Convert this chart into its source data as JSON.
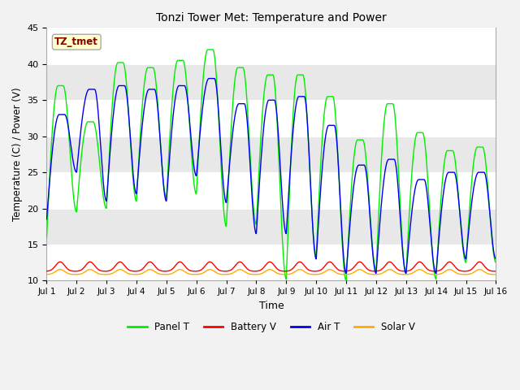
{
  "title": "Tonzi Tower Met: Temperature and Power",
  "xlabel": "Time",
  "ylabel": "Temperature (C) / Power (V)",
  "ylim": [
    10,
    45
  ],
  "yticks": [
    10,
    15,
    20,
    25,
    30,
    35,
    40,
    45
  ],
  "x_labels": [
    "Jul 1",
    "Jul 2",
    "Jul 3",
    "Jul 4",
    "Jul 5",
    "Jul 6",
    "Jul 7",
    "Jul 8",
    "Jul 9",
    "Jul 10",
    "Jul 11",
    "Jul 12",
    "Jul 13",
    "Jul 14",
    "Jul 15",
    "Jul 16"
  ],
  "annotation_text": "TZ_tmet",
  "annotation_box_color": "#ffffcc",
  "annotation_text_color": "#880000",
  "grid_color": "#ffffff",
  "bg_color_light": "#f0f0f0",
  "bg_color_dark": "#d8d8d8",
  "legend_entries": [
    "Panel T",
    "Battery V",
    "Air T",
    "Solar V"
  ],
  "line_colors": [
    "#00ee00",
    "#ff0000",
    "#0000ee",
    "#ffaa00"
  ],
  "n_days": 15,
  "panel_t_peaks": [
    37,
    32,
    40.2,
    39.5,
    40.5,
    42,
    39.5,
    38.5,
    38.5,
    35.5,
    29.5,
    34.5,
    30.5,
    28,
    28.5
  ],
  "panel_t_troughs": [
    16,
    19.5,
    20,
    21,
    21.5,
    22,
    17.5,
    17.8,
    10.2,
    13.5,
    10,
    11.5,
    11,
    10.2,
    12.5
  ],
  "air_t_peaks": [
    33,
    36.5,
    37,
    36.5,
    37,
    38,
    34.5,
    35,
    35.5,
    31.5,
    26,
    26.8,
    24,
    25,
    25
  ],
  "air_t_troughs": [
    18.5,
    25,
    21,
    22,
    21,
    24.5,
    20.8,
    16.5,
    16.5,
    13,
    11,
    11,
    11,
    11,
    13
  ],
  "battery_v_base": 11.3,
  "battery_v_spike": 1.3,
  "solar_v_base": 10.85,
  "solar_v_spike": 0.7
}
